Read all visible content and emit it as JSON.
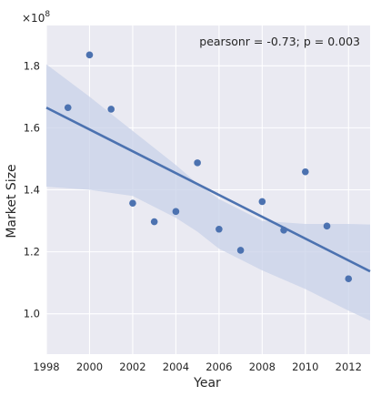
{
  "chart_data": {
    "type": "scatter",
    "xlabel": "Year",
    "ylabel": "Market Size",
    "y_offset_text": "×10",
    "y_offset_exponent": "8",
    "annotation": "pearsonr = -0.73; p = 0.003",
    "xlim": [
      1998,
      2013
    ],
    "ylim": [
      0.87,
      1.93
    ],
    "x_ticks": [
      1998,
      2000,
      2002,
      2004,
      2006,
      2008,
      2010,
      2012
    ],
    "y_ticks": [
      1.0,
      1.2,
      1.4,
      1.6,
      1.8
    ],
    "y_tick_labels": [
      "1.0",
      "1.2",
      "1.4",
      "1.6",
      "1.8"
    ],
    "grid": true,
    "background": "#eaeaf2",
    "point_color": "#4c72b0",
    "line_color": "#4c72b0",
    "band_color": "#c8d1e8",
    "points": [
      {
        "x": 1999,
        "y": 1.665
      },
      {
        "x": 2000,
        "y": 1.835
      },
      {
        "x": 2001,
        "y": 1.66
      },
      {
        "x": 2002,
        "y": 1.357
      },
      {
        "x": 2003,
        "y": 1.297
      },
      {
        "x": 2004,
        "y": 1.33
      },
      {
        "x": 2005,
        "y": 1.487
      },
      {
        "x": 2006,
        "y": 1.273
      },
      {
        "x": 2007,
        "y": 1.205
      },
      {
        "x": 2008,
        "y": 1.362
      },
      {
        "x": 2009,
        "y": 1.27
      },
      {
        "x": 2010,
        "y": 1.458
      },
      {
        "x": 2011,
        "y": 1.283
      },
      {
        "x": 2012,
        "y": 1.113
      }
    ],
    "regression": {
      "line": [
        {
          "x": 1998,
          "y": 1.665
        },
        {
          "x": 2013,
          "y": 1.137
        }
      ],
      "ci_upper": [
        {
          "x": 1998,
          "y": 1.805
        },
        {
          "x": 2000,
          "y": 1.7
        },
        {
          "x": 2002,
          "y": 1.59
        },
        {
          "x": 2004,
          "y": 1.48
        },
        {
          "x": 2005,
          "y": 1.42
        },
        {
          "x": 2006,
          "y": 1.37
        },
        {
          "x": 2008,
          "y": 1.3
        },
        {
          "x": 2010,
          "y": 1.29
        },
        {
          "x": 2012,
          "y": 1.29
        },
        {
          "x": 2013,
          "y": 1.288
        }
      ],
      "ci_lower": [
        {
          "x": 1998,
          "y": 1.41
        },
        {
          "x": 2000,
          "y": 1.4
        },
        {
          "x": 2002,
          "y": 1.38
        },
        {
          "x": 2004,
          "y": 1.31
        },
        {
          "x": 2005,
          "y": 1.265
        },
        {
          "x": 2006,
          "y": 1.21
        },
        {
          "x": 2008,
          "y": 1.14
        },
        {
          "x": 2010,
          "y": 1.08
        },
        {
          "x": 2012,
          "y": 1.01
        },
        {
          "x": 2013,
          "y": 0.978
        }
      ]
    }
  }
}
